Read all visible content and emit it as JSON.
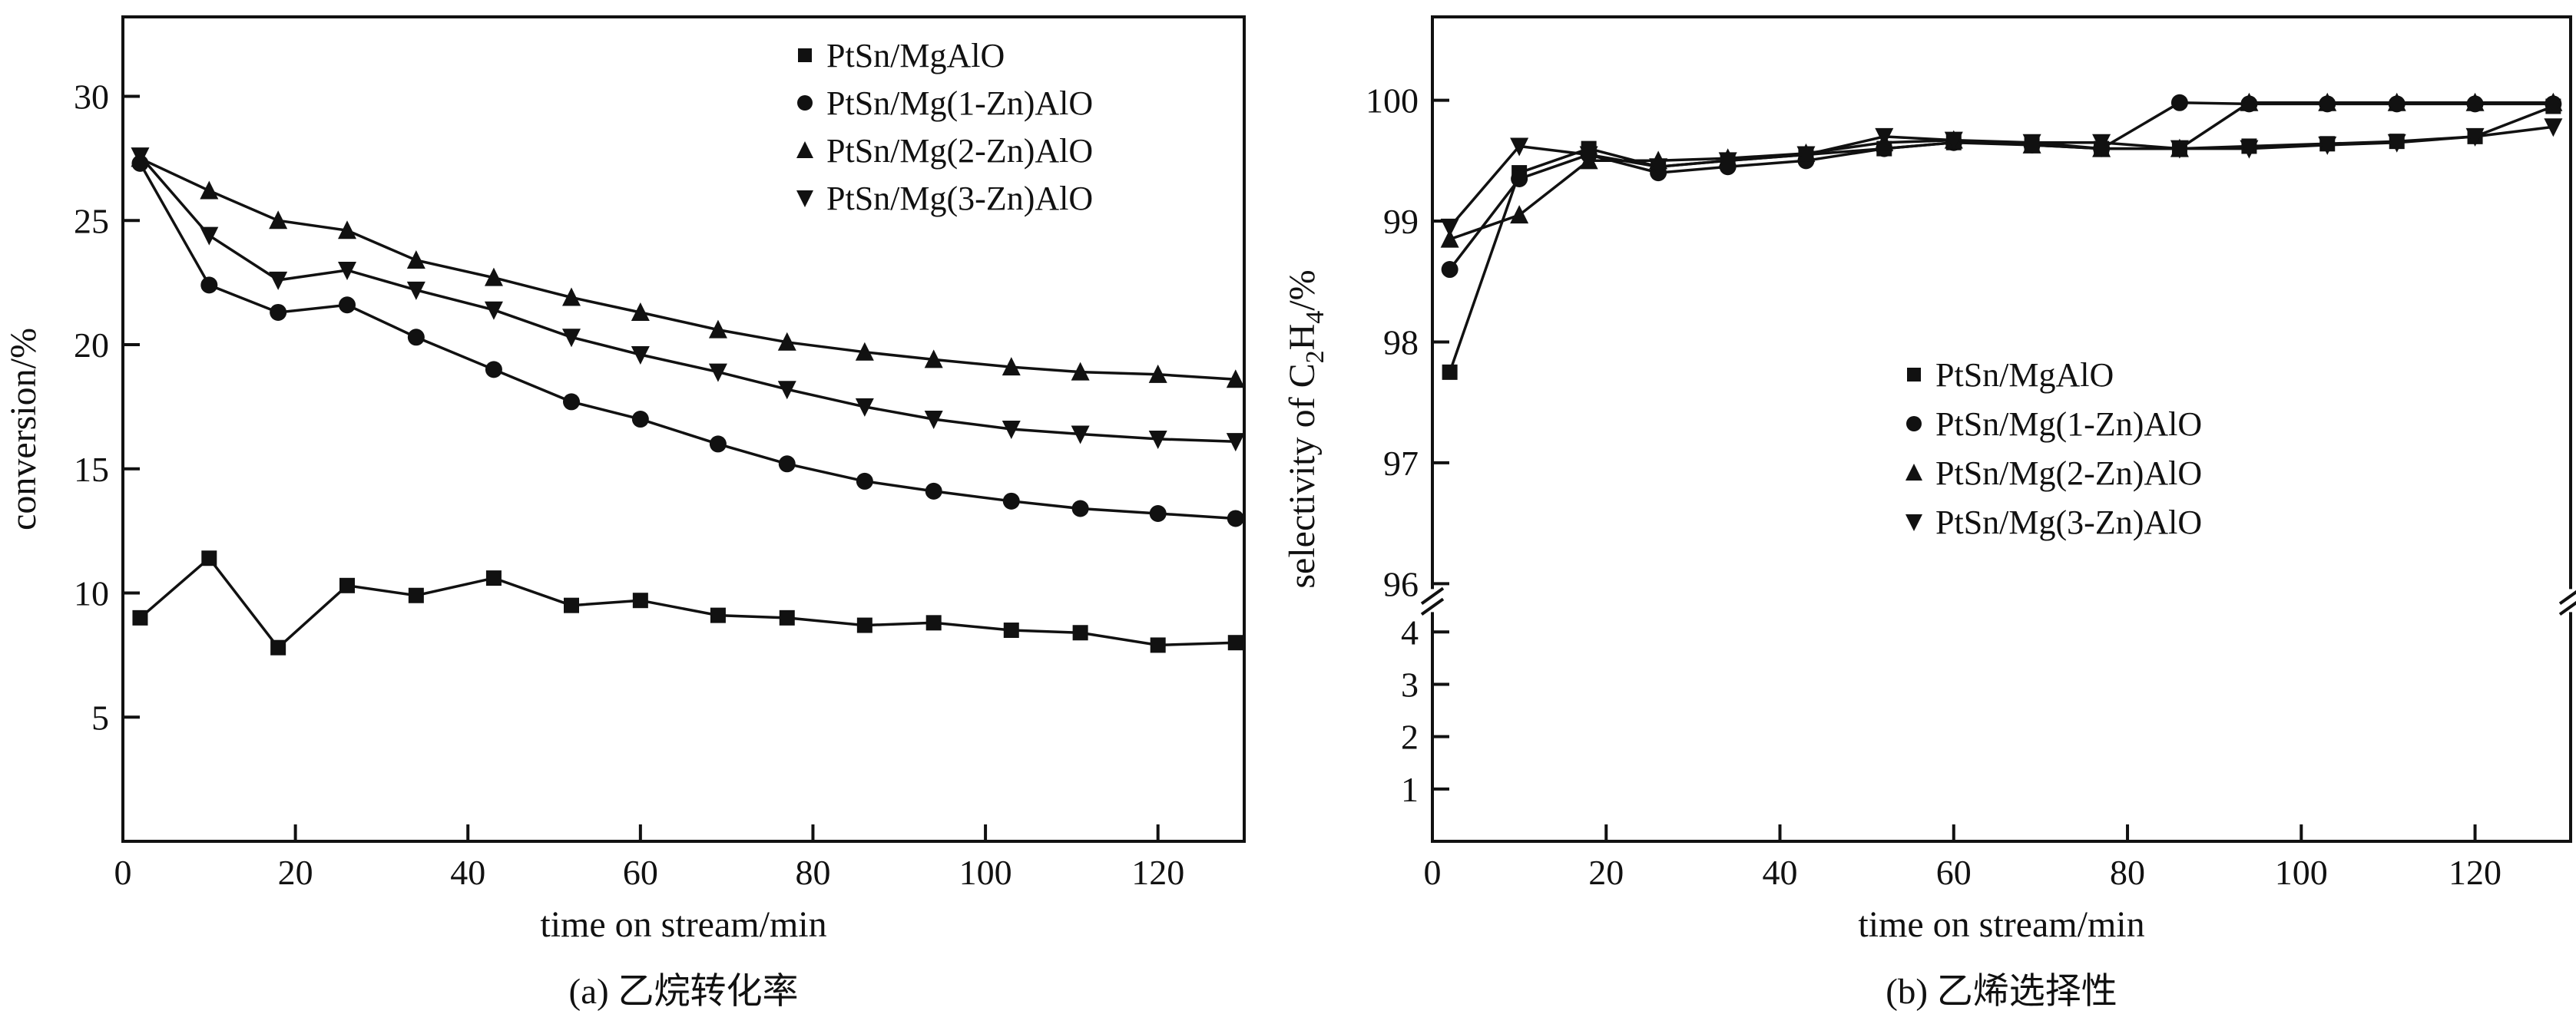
{
  "figure": {
    "background": "#ffffff",
    "ink": "#111111"
  },
  "chart_data": [
    {
      "id": "a",
      "type": "line",
      "caption": "(a) 乙烷转化率",
      "xlabel": "time on stream/min",
      "ylabel": "conversion/%",
      "xlim": [
        0,
        130
      ],
      "ylim": [
        0,
        33.2
      ],
      "xticks": [
        0,
        20,
        40,
        60,
        80,
        100,
        120
      ],
      "yticks": [
        5,
        10,
        15,
        20,
        25,
        30
      ],
      "grid": false,
      "legend_position": "top-right",
      "x": [
        2,
        10,
        18,
        26,
        34,
        43,
        52,
        60,
        69,
        77,
        86,
        94,
        103,
        111,
        120,
        129
      ],
      "series": [
        {
          "name": "PtSn/MgAlO",
          "marker": "square",
          "values": [
            9.0,
            11.4,
            7.8,
            10.3,
            9.9,
            10.6,
            9.5,
            9.7,
            9.1,
            9.0,
            8.7,
            8.8,
            8.5,
            8.4,
            7.9,
            8.0
          ]
        },
        {
          "name": "PtSn/Mg(1-Zn)AlO",
          "marker": "circle",
          "values": [
            27.3,
            22.4,
            21.3,
            21.6,
            20.3,
            19.0,
            17.7,
            17.0,
            16.0,
            15.2,
            14.5,
            14.1,
            13.7,
            13.4,
            13.2,
            13.0
          ]
        },
        {
          "name": "PtSn/Mg(2-Zn)AlO",
          "marker": "triangle-up",
          "values": [
            27.5,
            26.2,
            25.0,
            24.6,
            23.4,
            22.7,
            21.9,
            21.3,
            20.6,
            20.1,
            19.7,
            19.4,
            19.1,
            18.9,
            18.8,
            18.6
          ]
        },
        {
          "name": "PtSn/Mg(3-Zn)AlO",
          "marker": "triangle-down",
          "values": [
            27.6,
            24.4,
            22.6,
            23.0,
            22.2,
            21.4,
            20.3,
            19.6,
            18.9,
            18.2,
            17.5,
            17.0,
            16.6,
            16.4,
            16.2,
            16.1
          ]
        }
      ]
    },
    {
      "id": "b",
      "type": "line",
      "caption": "(b) 乙烯选择性",
      "xlabel": "time on stream/min",
      "ylabel": "selectivity of C₂H₄/%",
      "ylabel_parts": [
        {
          "t": "selectivity of C"
        },
        {
          "t": "2",
          "sub": true
        },
        {
          "t": "H"
        },
        {
          "t": "4",
          "sub": true
        },
        {
          "t": "/%"
        }
      ],
      "xlim": [
        0,
        131
      ],
      "xticks": [
        0,
        20,
        40,
        60,
        80,
        100,
        120
      ],
      "axis_break": true,
      "y_segments": [
        {
          "range": [
            0,
            4.6
          ],
          "frac": [
            0,
            0.292
          ],
          "ticks": [
            1,
            2,
            3,
            4
          ]
        },
        {
          "range": [
            95.86,
            100.69
          ],
          "frac": [
            0.292,
            1
          ],
          "ticks": [
            96,
            97,
            98,
            99,
            100
          ]
        }
      ],
      "grid": false,
      "legend_position": "center-right",
      "x": [
        2,
        10,
        18,
        26,
        34,
        43,
        52,
        60,
        69,
        77,
        86,
        94,
        103,
        111,
        120,
        129
      ],
      "series": [
        {
          "name": "PtSn/MgAlO",
          "marker": "square",
          "values": [
            97.75,
            99.4,
            99.6,
            99.45,
            99.5,
            99.55,
            99.6,
            99.65,
            99.65,
            99.6,
            99.6,
            99.62,
            99.64,
            99.66,
            99.7,
            99.95
          ]
        },
        {
          "name": "PtSn/Mg(1-Zn)AlO",
          "marker": "circle",
          "values": [
            98.6,
            99.35,
            99.55,
            99.4,
            99.45,
            99.5,
            99.6,
            99.65,
            99.63,
            99.6,
            99.98,
            99.97,
            99.97,
            99.97,
            99.97,
            99.97
          ]
        },
        {
          "name": "PtSn/Mg(2-Zn)AlO",
          "marker": "triangle-up",
          "values": [
            98.85,
            99.05,
            99.5,
            99.5,
            99.52,
            99.56,
            99.65,
            99.67,
            99.63,
            99.6,
            99.6,
            99.98,
            99.98,
            99.98,
            99.98,
            99.98
          ]
        },
        {
          "name": "PtSn/Mg(3-Zn)AlO",
          "marker": "triangle-down",
          "values": [
            98.95,
            99.62,
            99.55,
            99.45,
            99.5,
            99.55,
            99.7,
            99.67,
            99.65,
            99.65,
            99.6,
            99.6,
            99.63,
            99.65,
            99.7,
            99.78
          ]
        }
      ]
    }
  ]
}
